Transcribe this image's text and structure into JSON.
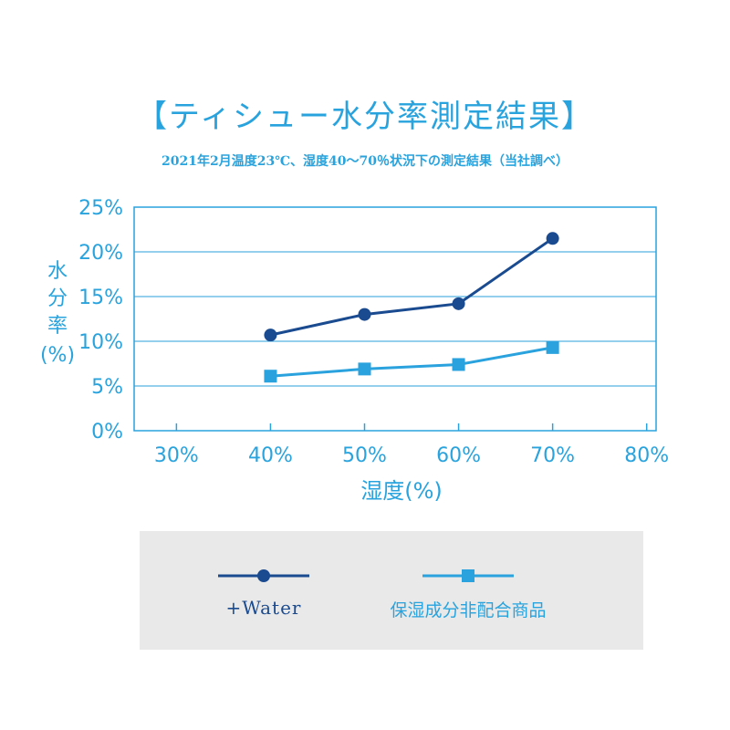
{
  "chart_data": {
    "type": "line",
    "title": "【ティシュー水分率測定結果】",
    "subtitle": "2021年2月温度23℃、湿度40～70％状況下の測定結果（当社調べ）",
    "xlabel": "湿度(%)",
    "ylabel": [
      "水",
      "分",
      "率",
      "(%)"
    ],
    "x_ticks": [
      "30%",
      "40%",
      "50%",
      "60%",
      "70%",
      "80%"
    ],
    "x_values": [
      30,
      40,
      50,
      60,
      70,
      80
    ],
    "y_ticks": [
      "0%",
      "5%",
      "10%",
      "15%",
      "20%",
      "25%"
    ],
    "ylim": [
      0,
      25
    ],
    "xlim": [
      25.5,
      81
    ],
    "grid": true,
    "legend_position": "bottom",
    "series": [
      {
        "name": "+Water",
        "marker": "circle",
        "color": "#1a4a8f",
        "x": [
          40,
          50,
          60,
          70
        ],
        "values": [
          10.7,
          13.0,
          14.2,
          21.5
        ]
      },
      {
        "name": "保湿成分非配合商品",
        "marker": "square",
        "color": "#2aa2dd",
        "x": [
          40,
          50,
          60,
          70
        ],
        "values": [
          6.1,
          6.9,
          7.4,
          9.3
        ]
      }
    ]
  },
  "colors": {
    "accent": "#29a3dd",
    "frame": "#2aa2dd",
    "legend_bg": "#e9e9e9"
  }
}
